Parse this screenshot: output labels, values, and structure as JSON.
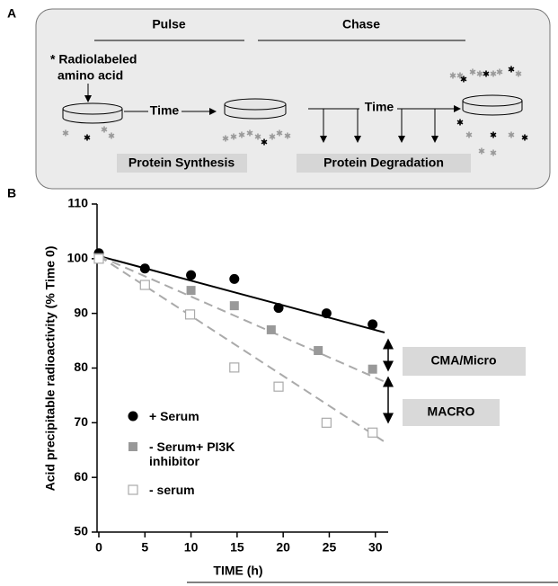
{
  "panel_a": {
    "label": "A",
    "pulse": "Pulse",
    "chase": "Chase",
    "radiolabel_line1": "* Radiolabeled",
    "radiolabel_line2": "amino acid",
    "time_pulse": "Time",
    "time_chase": "Time",
    "protein_synthesis": "Protein Synthesis",
    "protein_degradation": "Protein Degradation"
  },
  "chart_data": {
    "type": "scatter",
    "panel_label": "B",
    "x_label": "TIME (h)",
    "y_label": "Acid precipitable radioactivity (% Time 0)",
    "xlim": [
      0,
      31
    ],
    "xticks": [
      0,
      5,
      10,
      15,
      20,
      25,
      30
    ],
    "ylim": [
      50,
      110
    ],
    "yticks": [
      50,
      60,
      70,
      80,
      90,
      100,
      110
    ],
    "series": [
      {
        "name": "+ Serum",
        "color": "#000000",
        "marker": "circle",
        "dashed": false,
        "x": [
          0,
          5,
          10,
          14.7,
          19.5,
          24.7,
          29.7
        ],
        "values": [
          101,
          98.2,
          97,
          96.3,
          91,
          90,
          88
        ],
        "trend_x": [
          0,
          31
        ],
        "trend": [
          100.5,
          86.5
        ]
      },
      {
        "name": "- Serum+ PI3K inhibitor",
        "color": "#999999",
        "marker": "square",
        "dashed": true,
        "x": [
          0,
          10,
          14.7,
          18.7,
          23.8,
          29.7
        ],
        "values": [
          100.2,
          94.2,
          91.4,
          87,
          83.2,
          79.8
        ],
        "trend_x": [
          0,
          31
        ],
        "trend": [
          100.5,
          77.5
        ]
      },
      {
        "name": "- serum",
        "color": "#aaaaaa",
        "marker": "open-square",
        "dashed": true,
        "x": [
          0,
          5,
          9.9,
          14.7,
          19.5,
          24.7,
          29.7
        ],
        "values": [
          100,
          95.2,
          89.8,
          80.1,
          76.6,
          70,
          68.2
        ],
        "trend_x": [
          0,
          31
        ],
        "trend": [
          100.5,
          66.5
        ]
      }
    ],
    "annotations": [
      "CMA/Micro",
      "MACRO"
    ]
  }
}
